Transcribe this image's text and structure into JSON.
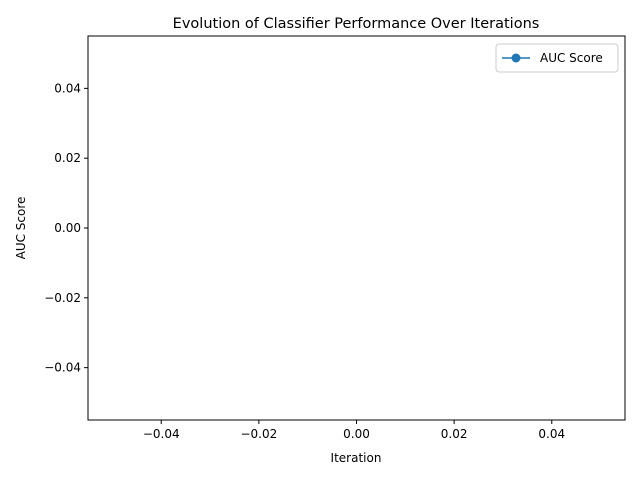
{
  "chart_data": {
    "type": "line",
    "title": "Evolution of Classifier Performance Over Iterations",
    "xlabel": "Iteration",
    "ylabel": "AUC Score",
    "xlim": [
      -0.055,
      0.055
    ],
    "ylim": [
      -0.055,
      0.055
    ],
    "xticks": [
      -0.04,
      -0.02,
      0.0,
      0.02,
      0.04
    ],
    "xtick_labels": [
      "−0.04",
      "−0.02",
      "0.00",
      "0.02",
      "0.04"
    ],
    "yticks": [
      -0.04,
      -0.02,
      0.0,
      0.02,
      0.04
    ],
    "ytick_labels": [
      "−0.04",
      "−0.02",
      "0.00",
      "0.02",
      "0.04"
    ],
    "grid": false,
    "legend_position": "upper right",
    "series": [
      {
        "name": "AUC Score",
        "color": "#1f77b4",
        "marker": "circle",
        "x": [],
        "y": []
      }
    ]
  }
}
